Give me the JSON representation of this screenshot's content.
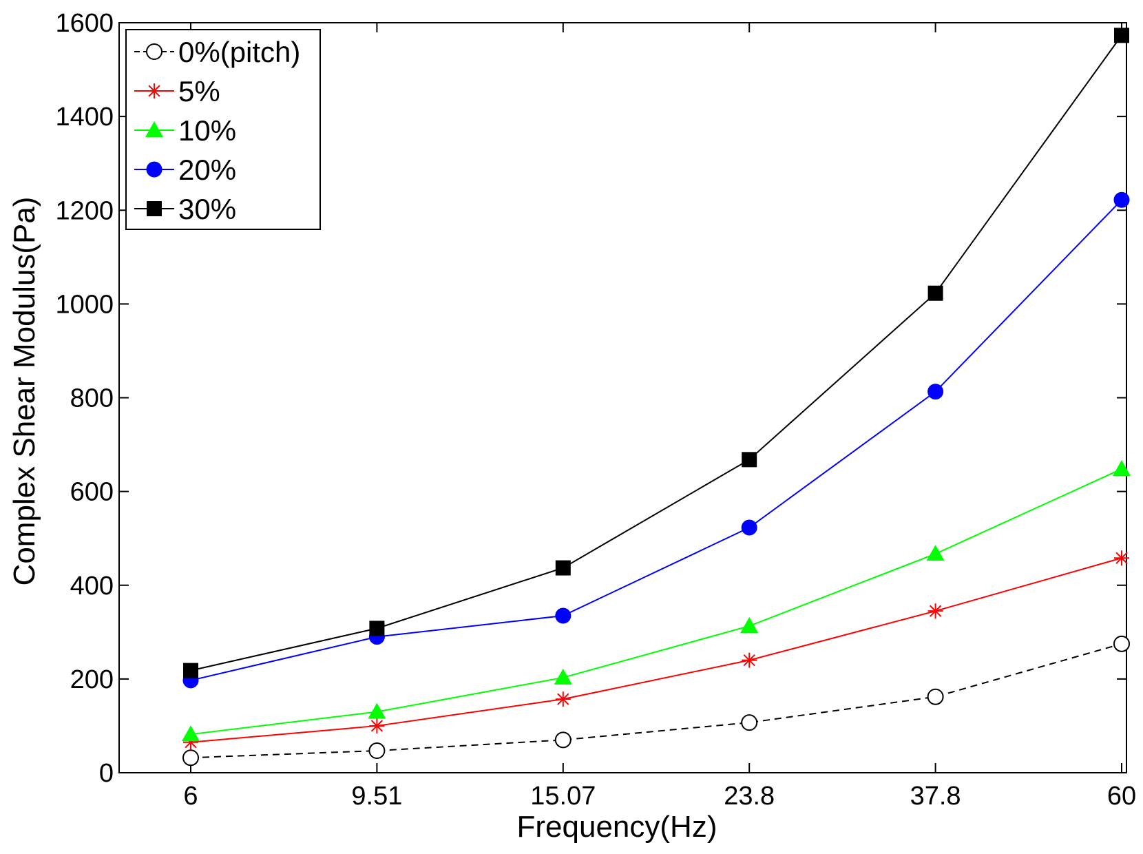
{
  "chart_data": {
    "type": "line",
    "xlabel": "Frequency(Hz)",
    "ylabel": "Complex Shear Modulus(Pa)",
    "categories": [
      "6",
      "9.51",
      "15.07",
      "23.8",
      "37.8",
      "60"
    ],
    "yticks": [
      "0",
      "200",
      "400",
      "600",
      "800",
      "1000",
      "1200",
      "1400",
      "1600"
    ],
    "ylim": [
      0,
      1600
    ],
    "grid": false,
    "legend_position": "top-left",
    "series": [
      {
        "name": "0%(pitch)",
        "color": "#000000",
        "marker": "open-circle",
        "line": "dashed",
        "values": [
          32,
          47,
          70,
          107,
          162,
          275
        ]
      },
      {
        "name": "5%",
        "color": "#ff0000",
        "marker": "asterisk",
        "line": "solid",
        "values": [
          65,
          100,
          157,
          240,
          345,
          458
        ]
      },
      {
        "name": "10%",
        "color": "#00ff00",
        "marker": "filled-triangle",
        "line": "solid",
        "values": [
          82,
          130,
          203,
          313,
          467,
          648
        ]
      },
      {
        "name": "20%",
        "color": "#0000ff",
        "marker": "filled-circle",
        "line": "solid",
        "values": [
          197,
          290,
          335,
          523,
          813,
          1222
        ]
      },
      {
        "name": "30%",
        "color": "#000000",
        "marker": "filled-square",
        "line": "solid",
        "values": [
          218,
          308,
          437,
          668,
          1023,
          1573
        ]
      }
    ]
  }
}
